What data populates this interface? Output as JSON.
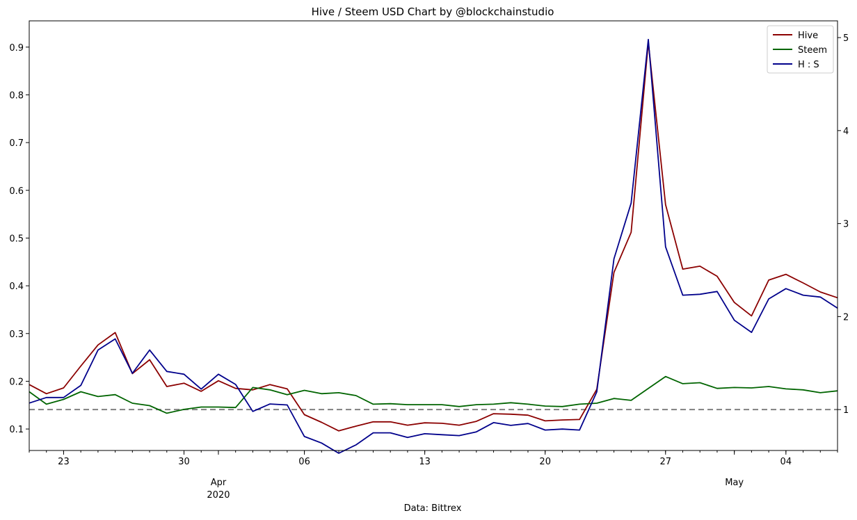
{
  "chart_data": {
    "type": "line",
    "title": "Hive / Steem USD Chart by @blockchainstudio",
    "xlabel": "Data: Bittrex",
    "x_start": "2020-03-21",
    "x_end": "2020-05-07",
    "x": [
      "2020-03-21",
      "2020-03-22",
      "2020-03-23",
      "2020-03-24",
      "2020-03-25",
      "2020-03-26",
      "2020-03-27",
      "2020-03-28",
      "2020-03-29",
      "2020-03-30",
      "2020-03-31",
      "2020-04-01",
      "2020-04-02",
      "2020-04-03",
      "2020-04-04",
      "2020-04-05",
      "2020-04-06",
      "2020-04-07",
      "2020-04-08",
      "2020-04-09",
      "2020-04-10",
      "2020-04-11",
      "2020-04-12",
      "2020-04-13",
      "2020-04-14",
      "2020-04-15",
      "2020-04-16",
      "2020-04-17",
      "2020-04-18",
      "2020-04-19",
      "2020-04-20",
      "2020-04-21",
      "2020-04-22",
      "2020-04-23",
      "2020-04-24",
      "2020-04-25",
      "2020-04-26",
      "2020-04-27",
      "2020-04-28",
      "2020-04-29",
      "2020-04-30",
      "2020-05-01",
      "2020-05-02",
      "2020-05-03",
      "2020-05-04",
      "2020-05-05",
      "2020-05-06",
      "2020-05-07"
    ],
    "x_ticks_major": [
      {
        "date": "2020-03-23",
        "label": "23",
        "label2": ""
      },
      {
        "date": "2020-03-30",
        "label": "30",
        "label2": ""
      },
      {
        "date": "2020-04-01",
        "label": "Apr",
        "label2": "2020"
      },
      {
        "date": "2020-04-06",
        "label": "06",
        "label2": ""
      },
      {
        "date": "2020-04-13",
        "label": "13",
        "label2": ""
      },
      {
        "date": "2020-04-20",
        "label": "20",
        "label2": ""
      },
      {
        "date": "2020-04-27",
        "label": "27",
        "label2": ""
      },
      {
        "date": "2020-05-01",
        "label": "May",
        "label2": ""
      },
      {
        "date": "2020-05-04",
        "label": "04",
        "label2": ""
      }
    ],
    "y_left": {
      "ylim": [
        0.055,
        0.955
      ],
      "ticks": [
        0.1,
        0.2,
        0.3,
        0.4,
        0.5,
        0.6,
        0.7,
        0.8,
        0.9
      ],
      "tick_labels": [
        "0.1",
        "0.2",
        "0.3",
        "0.4",
        "0.5",
        "0.6",
        "0.7",
        "0.8",
        "0.9"
      ]
    },
    "y_right": {
      "ylim": [
        0.56,
        5.18
      ],
      "ticks": [
        1,
        2,
        3,
        4,
        5
      ],
      "tick_labels": [
        "1",
        "2",
        "3",
        "4",
        "5"
      ]
    },
    "reference_line": {
      "axis": "right",
      "value": 1.0,
      "style": "dashed",
      "color": "#808080"
    },
    "series": [
      {
        "name": "Hive",
        "axis": "left",
        "color": "#8b0000",
        "values": [
          0.193,
          0.174,
          0.186,
          0.232,
          0.276,
          0.302,
          0.216,
          0.245,
          0.189,
          0.196,
          0.179,
          0.201,
          0.185,
          0.182,
          0.193,
          0.184,
          0.13,
          0.114,
          0.096,
          0.106,
          0.115,
          0.115,
          0.108,
          0.113,
          0.112,
          0.108,
          0.116,
          0.132,
          0.131,
          0.129,
          0.117,
          0.119,
          0.12,
          0.183,
          0.428,
          0.512,
          0.91,
          0.57,
          0.435,
          0.441,
          0.42,
          0.365,
          0.337,
          0.412,
          0.424,
          0.406,
          0.387,
          0.375
        ]
      },
      {
        "name": "Steem",
        "axis": "left",
        "color": "#006400",
        "values": [
          0.178,
          0.152,
          0.162,
          0.178,
          0.168,
          0.172,
          0.154,
          0.149,
          0.133,
          0.141,
          0.146,
          0.146,
          0.145,
          0.187,
          0.182,
          0.172,
          0.181,
          0.174,
          0.176,
          0.17,
          0.152,
          0.153,
          0.151,
          0.151,
          0.151,
          0.147,
          0.151,
          0.152,
          0.155,
          0.152,
          0.148,
          0.147,
          0.152,
          0.154,
          0.164,
          0.16,
          0.185,
          0.21,
          0.195,
          0.197,
          0.185,
          0.187,
          0.186,
          0.189,
          0.184,
          0.182,
          0.176,
          0.18
        ]
      },
      {
        "name": "H : S",
        "axis": "right",
        "color": "#00008b",
        "values": [
          1.07,
          1.13,
          1.13,
          1.26,
          1.64,
          1.76,
          1.39,
          1.64,
          1.41,
          1.38,
          1.22,
          1.38,
          1.27,
          0.98,
          1.06,
          1.05,
          0.71,
          0.64,
          0.53,
          0.62,
          0.75,
          0.75,
          0.7,
          0.74,
          0.73,
          0.72,
          0.76,
          0.86,
          0.83,
          0.85,
          0.78,
          0.79,
          0.78,
          1.19,
          2.62,
          3.22,
          4.98,
          2.75,
          2.23,
          2.24,
          2.27,
          1.96,
          1.83,
          2.19,
          2.3,
          2.23,
          2.21,
          2.09
        ]
      }
    ],
    "legend": {
      "position": "top-right",
      "entries": [
        "Hive",
        "Steem",
        "H : S"
      ]
    },
    "grid": false
  }
}
